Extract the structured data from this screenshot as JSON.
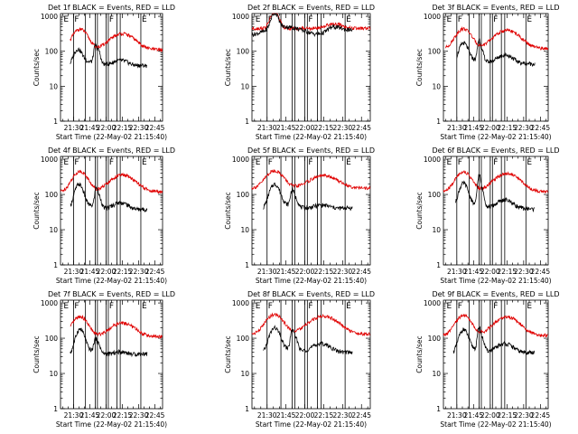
{
  "chart_data": {
    "type": "line",
    "colors": {
      "black_series": "#000000",
      "red_series": "#e00000"
    },
    "shared": {
      "xlabel": "Start Time (22-May-02 21:15:40)",
      "ylabel": "Counts/sec",
      "x_tick_labels": [
        "21:30",
        "21:45",
        "22:00",
        "22:15",
        "22:30",
        "22:45"
      ],
      "x_tick_minutes": [
        30,
        45,
        60,
        75,
        90,
        105
      ],
      "xlim_minutes_after_21h": [
        18,
        112
      ],
      "y_scale": "log",
      "ylim": [
        1,
        1200
      ],
      "y_tick_labels": [
        "1",
        "10",
        "100",
        "1000"
      ],
      "y_tick_values": [
        1,
        10,
        100,
        1000
      ],
      "flag_lines_minutes": [
        30,
        41,
        50,
        52,
        60,
        62,
        70,
        73,
        92
      ],
      "flag_labels": [
        {
          "text": "E",
          "at_minute": 20
        },
        {
          "text": "F",
          "at_minute": 30
        },
        {
          "text": "F",
          "at_minute": 62
        },
        {
          "text": "E",
          "at_minute": 92
        }
      ]
    },
    "panels": [
      {
        "title": "Det 1f BLACK = Events, RED = LLD",
        "black_range": [
          27,
          98
        ],
        "red_range": [
          27,
          112
        ],
        "black": {
          "base": 40,
          "peak1": 70,
          "p1c": 34,
          "p1w": 3.5,
          "peak2": 90,
          "p2c": 50,
          "p2w": 1.2,
          "peak3": 60,
          "p3c": 53,
          "p3w": 1.5,
          "hump": 25,
          "hc": 73,
          "hw": 7,
          "tail": 25
        },
        "red": {
          "base": 110,
          "peak1": 320,
          "p1c": 36,
          "p1w": 6,
          "hump": 230,
          "hc": 75,
          "hw": 10
        }
      },
      {
        "title": "Det 2f BLACK = Events, RED = LLD",
        "black_range": [
          18,
          98
        ],
        "red_range": [
          18,
          112
        ],
        "black": {
          "base": 400,
          "peak1": 800,
          "p1c": 36,
          "p1w": 2.5,
          "peak2": 0,
          "p2c": 50,
          "p2w": 1,
          "peak3": 0,
          "p3c": 53,
          "p3w": 1,
          "hump": 150,
          "hc": 83,
          "hw": 5,
          "tail": 350
        },
        "red": {
          "base": 450,
          "peak1": 850,
          "p1c": 36,
          "p1w": 3,
          "hump": 250,
          "hc": 83,
          "hw": 6
        }
      },
      {
        "title": "Det 3f BLACK = Events, RED = LLD",
        "black_range": [
          30,
          100
        ],
        "red_range": [
          20,
          112
        ],
        "black": {
          "base": 45,
          "peak1": 120,
          "p1c": 36,
          "p1w": 3.5,
          "peak2": 160,
          "p2c": 50,
          "p2w": 1.2,
          "peak3": 40,
          "p3c": 53,
          "p3w": 1.5,
          "hump": 45,
          "hc": 73,
          "hw": 7,
          "tail": 30
        },
        "red": {
          "base": 120,
          "peak1": 320,
          "p1c": 36,
          "p1w": 6,
          "hump": 300,
          "hc": 75,
          "hw": 10
        }
      },
      {
        "title": "Det 4f BLACK = Events, RED = LLD",
        "black_range": [
          27,
          98
        ],
        "red_range": [
          18,
          112
        ],
        "black": {
          "base": 38,
          "peak1": 150,
          "p1c": 35,
          "p1w": 3.5,
          "peak2": 110,
          "p2c": 51,
          "p2w": 1.3,
          "peak3": 40,
          "p3c": 54,
          "p3w": 1.5,
          "hump": 30,
          "hc": 73,
          "hw": 7,
          "tail": 25
        },
        "red": {
          "base": 120,
          "peak1": 330,
          "p1c": 36,
          "p1w": 6,
          "hump": 260,
          "hc": 75,
          "hw": 10
        }
      },
      {
        "title": "Det 5f BLACK = Events, RED = LLD",
        "black_range": [
          27,
          98
        ],
        "red_range": [
          18,
          112
        ],
        "black": {
          "base": 40,
          "peak1": 150,
          "p1c": 36,
          "p1w": 3.5,
          "peak2": 90,
          "p2c": 50,
          "p2w": 1.2,
          "peak3": 30,
          "p3c": 53,
          "p3w": 1.5,
          "hump": 20,
          "hc": 73,
          "hw": 7,
          "tail": 40
        },
        "red": {
          "base": 150,
          "peak1": 320,
          "p1c": 36,
          "p1w": 6,
          "hump": 220,
          "hc": 75,
          "hw": 10
        }
      },
      {
        "title": "Det 6f BLACK = Events, RED = LLD",
        "black_range": [
          29,
          100
        ],
        "red_range": [
          18,
          112
        ],
        "black": {
          "base": 40,
          "peak1": 160,
          "p1c": 36,
          "p1w": 3.5,
          "peak2": 300,
          "p2c": 50,
          "p2w": 1.2,
          "peak3": 80,
          "p3c": 53,
          "p3w": 1.5,
          "hump": 40,
          "hc": 73,
          "hw": 7,
          "tail": 25
        },
        "red": {
          "base": 120,
          "peak1": 320,
          "p1c": 36,
          "p1w": 6,
          "hump": 300,
          "hc": 75,
          "hw": 10
        }
      },
      {
        "title": "Det 7f BLACK = Events, RED = LLD",
        "black_range": [
          27,
          98
        ],
        "red_range": [
          27,
          112
        ],
        "black": {
          "base": 35,
          "peak1": 140,
          "p1c": 36,
          "p1w": 3.5,
          "peak2": 50,
          "p2c": 50,
          "p2w": 1.2,
          "peak3": 30,
          "p3c": 53,
          "p3w": 1.5,
          "hump": 15,
          "hc": 73,
          "hw": 7,
          "tail": 35
        },
        "red": {
          "base": 110,
          "peak1": 300,
          "p1c": 36,
          "p1w": 6,
          "hump": 180,
          "hc": 75,
          "hw": 10
        }
      },
      {
        "title": "Det 8f BLACK = Events, RED = LLD",
        "black_range": [
          27,
          98
        ],
        "red_range": [
          18,
          112
        ],
        "black": {
          "base": 40,
          "peak1": 150,
          "p1c": 36,
          "p1w": 3.5,
          "peak2": 120,
          "p2c": 50,
          "p2w": 1.2,
          "peak3": 50,
          "p3c": 53,
          "p3w": 1.5,
          "hump": 40,
          "hc": 73,
          "hw": 7,
          "tail": 30
        },
        "red": {
          "base": 130,
          "peak1": 340,
          "p1c": 36,
          "p1w": 6,
          "hump": 320,
          "hc": 75,
          "hw": 10
        }
      },
      {
        "title": "Det 9f BLACK = Events, RED = LLD",
        "black_range": [
          27,
          100
        ],
        "red_range": [
          18,
          112
        ],
        "black": {
          "base": 40,
          "peak1": 130,
          "p1c": 36,
          "p1w": 3.5,
          "peak2": 150,
          "p2c": 50,
          "p2w": 1.2,
          "peak3": 50,
          "p3c": 53,
          "p3w": 1.5,
          "hump": 40,
          "hc": 73,
          "hw": 7,
          "tail": 25
        },
        "red": {
          "base": 120,
          "peak1": 320,
          "p1c": 36,
          "p1w": 6,
          "hump": 300,
          "hc": 75,
          "hw": 10
        }
      }
    ]
  }
}
